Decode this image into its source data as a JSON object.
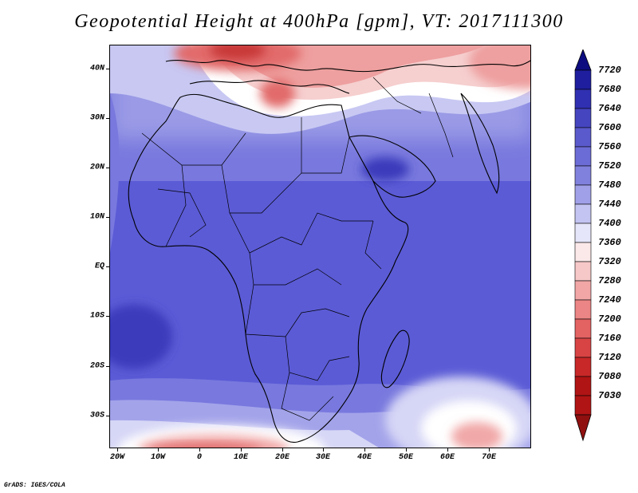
{
  "title": "Geopotential Height at 400hPa [gpm], VT: 2017111300",
  "credit": "GrADS: IGES/COLA",
  "axes": {
    "lat_labels": [
      "40N",
      "30N",
      "20N",
      "10N",
      "EQ",
      "10S",
      "20S",
      "30S"
    ],
    "lat_values": [
      40,
      30,
      20,
      10,
      0,
      -10,
      -20,
      -30
    ],
    "lon_labels": [
      "20W",
      "10W",
      "0",
      "10E",
      "20E",
      "30E",
      "40E",
      "50E",
      "60E",
      "70E"
    ],
    "lon_values": [
      -20,
      -10,
      0,
      10,
      20,
      30,
      40,
      50,
      60,
      70
    ],
    "lat_range": [
      -37,
      44
    ],
    "lon_range": [
      -22,
      80
    ]
  },
  "colorbar": {
    "labels": [
      "7720",
      "7680",
      "7640",
      "7600",
      "7560",
      "7520",
      "7480",
      "7440",
      "7400",
      "7360",
      "7320",
      "7280",
      "7240",
      "7200",
      "7160",
      "7120",
      "7080",
      "7030"
    ],
    "colors": [
      "#0d0d80",
      "#1e1e9e",
      "#3030b2",
      "#4545c0",
      "#5a5acc",
      "#6c6cd6",
      "#8080dd",
      "#a0a0e8",
      "#c4c4f2",
      "#e6e6fa",
      "#fbe8e8",
      "#f7c8c8",
      "#f2a6a6",
      "#ec8585",
      "#e36262",
      "#d84444",
      "#c82828",
      "#b01414",
      "#901010"
    ]
  },
  "palette": {
    "deep_blue": "#3b3bbb",
    "blue": "#5b5bd6",
    "mid_blue": "#7b7be0",
    "light_blue": "#a9a9ec",
    "pale_blue": "#d6d6f6",
    "white": "#ffffff",
    "pale_red": "#f8d6d6",
    "light_red": "#f1a8a8",
    "red": "#e06a6a",
    "dark_red": "#c83838"
  }
}
